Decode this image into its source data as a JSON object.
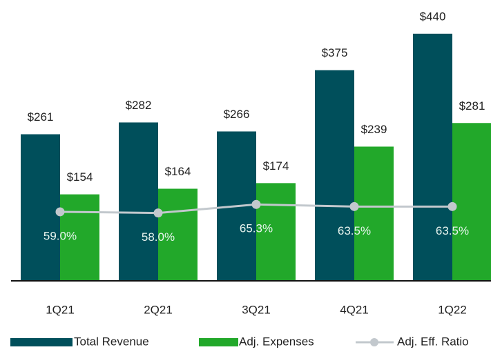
{
  "chart_data": {
    "type": "bar",
    "categories": [
      "1Q21",
      "2Q21",
      "3Q21",
      "4Q21",
      "1Q22"
    ],
    "series": [
      {
        "name": "Total Revenue",
        "color": "#004f5b",
        "values": [
          261,
          282,
          266,
          375,
          440
        ],
        "value_labels": [
          "$261",
          "$282",
          "$266",
          "$375",
          "$440"
        ]
      },
      {
        "name": "Adj. Expenses",
        "color": "#22a82a",
        "values": [
          154,
          164,
          174,
          239,
          281
        ],
        "value_labels": [
          "$154",
          "$164",
          "$174",
          "$239",
          "$281"
        ]
      },
      {
        "name": "Adj. Eff. Ratio",
        "type": "line",
        "axis": "y2",
        "color": "#c2c8cd",
        "values": [
          59.0,
          58.0,
          65.3,
          63.5,
          63.5
        ],
        "value_labels": [
          "59.0%",
          "58.0%",
          "65.3%",
          "63.5%",
          "63.5%"
        ]
      }
    ],
    "ylim": [
      0,
      500
    ],
    "y2lim": [
      0,
      240
    ],
    "legend": "bottom"
  }
}
